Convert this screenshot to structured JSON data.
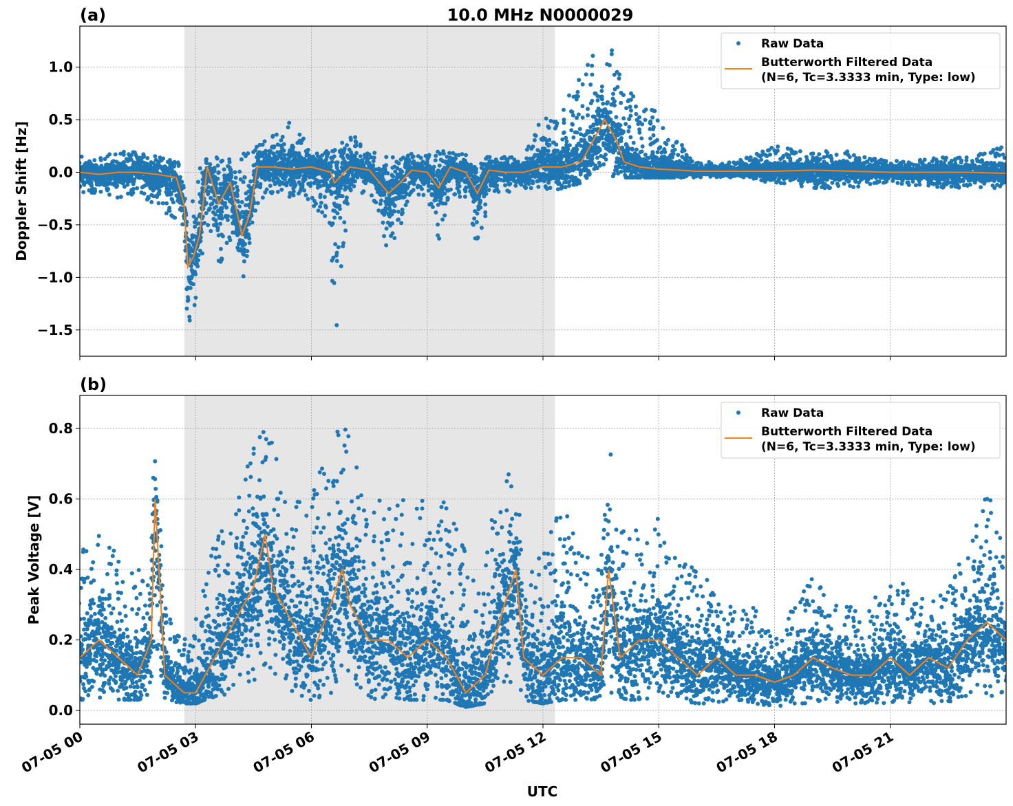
{
  "title": "10.0 MHz N0000029",
  "xlabel": "UTC",
  "x_ticks": [
    "07-05 00",
    "07-05 03",
    "07-05 06",
    "07-05 09",
    "07-05 12",
    "07-05 15",
    "07-05 18",
    "07-05 21"
  ],
  "x_tick_hours": [
    0,
    3,
    6,
    9,
    12,
    15,
    18,
    21
  ],
  "xlim_hours": [
    0,
    24
  ],
  "legend": {
    "raw": "Raw Data",
    "filt1": "Butterworth Filtered Data",
    "filt2": "(N=6, Tc=3.3333 min, Type: low)",
    "placement": "top-right"
  },
  "colors": {
    "raw": "#1f77b4",
    "filtered": "#ff7f0e",
    "shade": "#e6e6e6"
  },
  "chart_data": [
    {
      "type": "scatter",
      "panel_label": "(a)",
      "ylabel": "Doppler Shift [Hz]",
      "ylim": [
        -1.75,
        1.39
      ],
      "y_ticks": [
        1.0,
        0.5,
        0.0,
        -0.5,
        -1.0,
        -1.5
      ],
      "y_tick_labels": [
        "1.0",
        "0.5",
        "0.0",
        "−0.5",
        "−1.0",
        "−1.5"
      ],
      "grid": true,
      "shaded_hours": [
        2.71,
        12.31
      ],
      "x_hours": [
        0,
        0.5,
        1,
        1.5,
        2,
        2.5,
        2.7,
        2.8,
        2.95,
        3.1,
        3.3,
        3.6,
        3.9,
        4.2,
        4.4,
        4.6,
        5,
        5.5,
        6,
        6.5,
        6.6,
        7,
        7.5,
        8,
        8.3,
        8.6,
        9,
        9.3,
        9.6,
        10,
        10.3,
        10.6,
        11,
        11.5,
        12,
        12.5,
        13,
        13.3,
        13.6,
        13.9,
        14.1,
        14.5,
        15,
        15.5,
        16,
        17,
        18,
        19,
        20,
        21,
        22,
        23,
        24
      ],
      "series": [
        {
          "name": "Butterworth Filtered Data",
          "values": [
            0,
            -0.02,
            0,
            0,
            -0.02,
            -0.05,
            -0.3,
            -0.9,
            -0.8,
            -0.6,
            0.05,
            -0.3,
            -0.1,
            -0.6,
            -0.4,
            0.05,
            0.05,
            0.03,
            0.05,
            0.0,
            -0.1,
            0.05,
            0.02,
            -0.2,
            -0.1,
            0.02,
            0.0,
            -0.15,
            0.05,
            0,
            -0.2,
            0.02,
            0,
            0,
            0.05,
            0.05,
            0.1,
            0.3,
            0.5,
            0.3,
            0.1,
            0.05,
            0.03,
            0.02,
            0.01,
            0.01,
            0.01,
            0.02,
            0.01,
            0,
            0,
            0,
            -0.01
          ]
        },
        {
          "name": "Raw Data",
          "min": [
            -0.2,
            -0.2,
            -0.25,
            -0.2,
            -0.35,
            -0.45,
            -0.7,
            -1.5,
            -1.3,
            -0.9,
            -0.5,
            -0.9,
            -0.7,
            -1.05,
            -0.9,
            -0.3,
            -0.2,
            -0.25,
            -0.3,
            -0.5,
            -1.6,
            -0.2,
            -0.2,
            -0.75,
            -0.5,
            -0.2,
            -0.25,
            -0.65,
            -0.2,
            -0.3,
            -0.8,
            -0.2,
            -0.2,
            -0.15,
            -0.2,
            -0.15,
            -0.1,
            0.0,
            0.0,
            -0.05,
            -0.05,
            -0.05,
            -0.05,
            -0.05,
            -0.05,
            -0.05,
            -0.1,
            -0.15,
            -0.15,
            -0.1,
            -0.15,
            -0.15,
            -0.15
          ],
          "max": [
            0.15,
            0.15,
            0.2,
            0.2,
            0.15,
            0.1,
            0.05,
            -0.3,
            -0.2,
            0.1,
            0.15,
            0.15,
            0.15,
            0.2,
            0.25,
            0.25,
            0.35,
            0.5,
            0.2,
            0.2,
            0.2,
            0.4,
            0.2,
            0.15,
            0.15,
            0.2,
            0.2,
            0.2,
            0.2,
            0.2,
            0.15,
            0.15,
            0.15,
            0.15,
            0.55,
            0.6,
            1.0,
            1.2,
            1.1,
            1.25,
            0.9,
            0.6,
            0.6,
            0.3,
            0.1,
            0.1,
            0.25,
            0.2,
            0.2,
            0.1,
            0.15,
            0.15,
            0.25
          ]
        }
      ]
    },
    {
      "type": "scatter",
      "panel_label": "(b)",
      "ylabel": "Peak Voltage [V]",
      "ylim": [
        -0.039,
        0.894
      ],
      "y_ticks": [
        0.8,
        0.6,
        0.4,
        0.2,
        0.0
      ],
      "y_tick_labels": [
        "0.8",
        "0.6",
        "0.4",
        "0.2",
        "0.0"
      ],
      "grid": true,
      "shaded_hours": [
        2.71,
        12.31
      ],
      "x_hours": [
        0,
        0.5,
        1,
        1.5,
        1.85,
        1.95,
        2.2,
        2.7,
        3,
        3.5,
        4,
        4.5,
        4.8,
        5,
        5.5,
        6,
        6.5,
        6.8,
        7,
        7.5,
        8,
        8.5,
        9,
        9.5,
        10,
        10.5,
        11,
        11.3,
        11.5,
        12,
        12.5,
        13,
        13.5,
        13.7,
        14,
        14.5,
        15,
        15.5,
        16,
        16.5,
        17,
        17.5,
        18,
        18.5,
        19,
        19.5,
        20,
        20.5,
        21,
        21.5,
        22,
        22.5,
        23,
        23.5,
        24
      ],
      "series": [
        {
          "name": "Butterworth Filtered Data",
          "values": [
            0.15,
            0.2,
            0.15,
            0.1,
            0.2,
            0.6,
            0.1,
            0.05,
            0.05,
            0.15,
            0.25,
            0.35,
            0.5,
            0.35,
            0.25,
            0.15,
            0.3,
            0.4,
            0.3,
            0.2,
            0.2,
            0.15,
            0.2,
            0.15,
            0.05,
            0.1,
            0.3,
            0.4,
            0.15,
            0.1,
            0.15,
            0.15,
            0.1,
            0.4,
            0.15,
            0.2,
            0.2,
            0.15,
            0.1,
            0.15,
            0.1,
            0.1,
            0.08,
            0.1,
            0.15,
            0.12,
            0.1,
            0.1,
            0.15,
            0.1,
            0.15,
            0.12,
            0.2,
            0.25,
            0.2
          ]
        },
        {
          "name": "Raw Data",
          "min": [
            0.02,
            0.03,
            0.03,
            0.03,
            0.05,
            0.2,
            0.03,
            0.02,
            0.02,
            0.04,
            0.05,
            0.08,
            0.1,
            0.07,
            0.05,
            0.03,
            0.05,
            0.1,
            0.05,
            0.03,
            0.04,
            0.03,
            0.03,
            0.03,
            0.01,
            0.02,
            0.05,
            0.08,
            0.03,
            0.02,
            0.03,
            0.03,
            0.02,
            0.05,
            0.03,
            0.03,
            0.04,
            0.03,
            0.02,
            0.02,
            0.02,
            0.02,
            0.01,
            0.02,
            0.02,
            0.02,
            0.02,
            0.02,
            0.02,
            0.02,
            0.02,
            0.02,
            0.03,
            0.04,
            0.03
          ],
          "max": [
            0.45,
            0.5,
            0.45,
            0.4,
            0.45,
            0.85,
            0.3,
            0.2,
            0.25,
            0.5,
            0.6,
            0.75,
            0.84,
            0.8,
            0.6,
            0.6,
            0.8,
            0.83,
            0.8,
            0.6,
            0.6,
            0.65,
            0.6,
            0.6,
            0.45,
            0.45,
            0.72,
            0.7,
            0.45,
            0.45,
            0.6,
            0.45,
            0.4,
            0.8,
            0.55,
            0.5,
            0.55,
            0.45,
            0.4,
            0.35,
            0.3,
            0.3,
            0.2,
            0.3,
            0.38,
            0.3,
            0.3,
            0.3,
            0.4,
            0.35,
            0.3,
            0.35,
            0.5,
            0.62,
            0.45
          ]
        }
      ]
    }
  ]
}
